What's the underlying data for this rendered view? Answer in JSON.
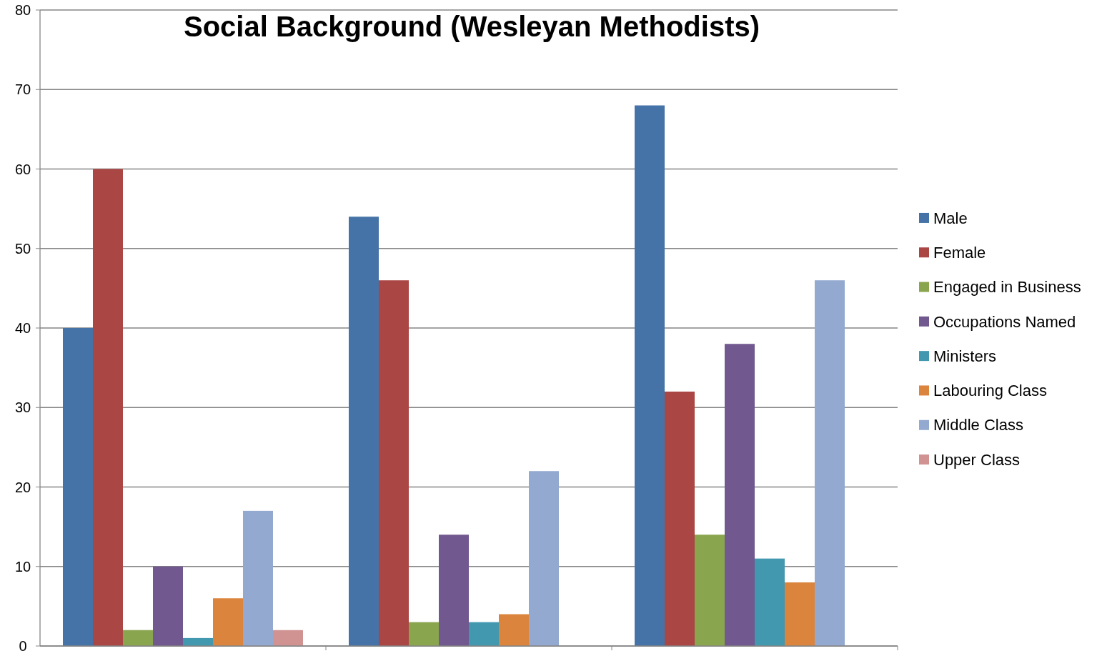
{
  "chart_data": {
    "type": "bar",
    "title": "Social Background (Wesleyan Methodists)",
    "categories": [
      null,
      null,
      null
    ],
    "series": [
      {
        "name": "Male",
        "color": "#4573a7",
        "values": [
          40,
          54,
          68
        ]
      },
      {
        "name": "Female",
        "color": "#aa4644",
        "values": [
          60,
          46,
          32
        ]
      },
      {
        "name": "Engaged in Business",
        "color": "#89a54e",
        "values": [
          2,
          3,
          14
        ]
      },
      {
        "name": "Occupations Named",
        "color": "#71588f",
        "values": [
          10,
          14,
          38
        ]
      },
      {
        "name": "Ministers",
        "color": "#4298af",
        "values": [
          1,
          3,
          11
        ]
      },
      {
        "name": "Labouring Class",
        "color": "#db843d",
        "values": [
          6,
          4,
          8
        ]
      },
      {
        "name": "Middle Class",
        "color": "#93a9d0",
        "values": [
          17,
          22,
          46
        ]
      },
      {
        "name": "Upper Class",
        "color": "#d09392",
        "values": [
          2,
          null,
          null
        ]
      }
    ],
    "ylim": [
      0,
      80
    ],
    "yticks": [
      0,
      10,
      20,
      30,
      40,
      50,
      60,
      70,
      80
    ],
    "grid": "y",
    "legend": "right"
  }
}
